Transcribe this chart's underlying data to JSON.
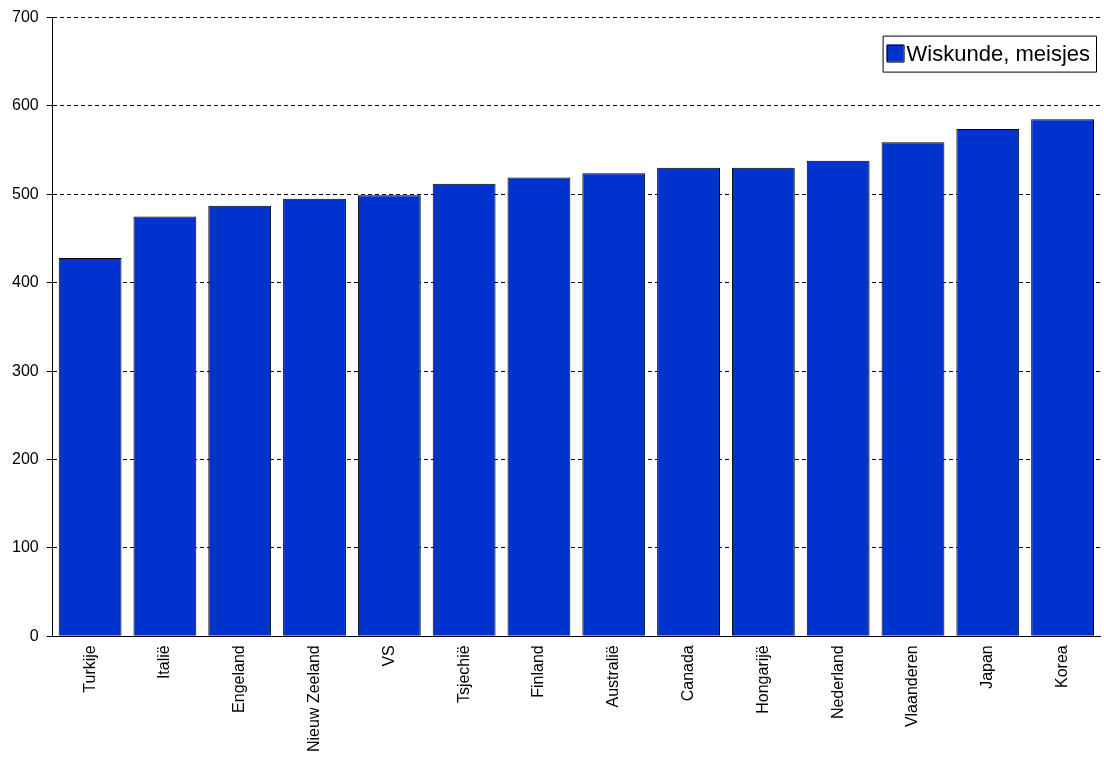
{
  "chart_data": {
    "type": "bar",
    "categories": [
      "Turkije",
      "Italië",
      "Engeland",
      "Nieuw Zeeland",
      "VS",
      "Tsjechië",
      "Finland",
      "Australië",
      "Canada",
      "Hongarijë",
      "Nederland",
      "Vlaanderen",
      "Japan",
      "Korea"
    ],
    "series": [
      {
        "name": "Wiskunde, meisjes",
        "color": "#0033cc",
        "values": [
          428,
          475,
          487,
          495,
          499,
          512,
          519,
          524,
          530,
          530,
          538,
          559,
          574,
          585
        ]
      }
    ],
    "ylim": [
      0,
      700
    ],
    "yticks": [
      0,
      100,
      200,
      300,
      400,
      500,
      600,
      700
    ],
    "grid": "y",
    "line_style": "dashed",
    "legend": "top right"
  }
}
